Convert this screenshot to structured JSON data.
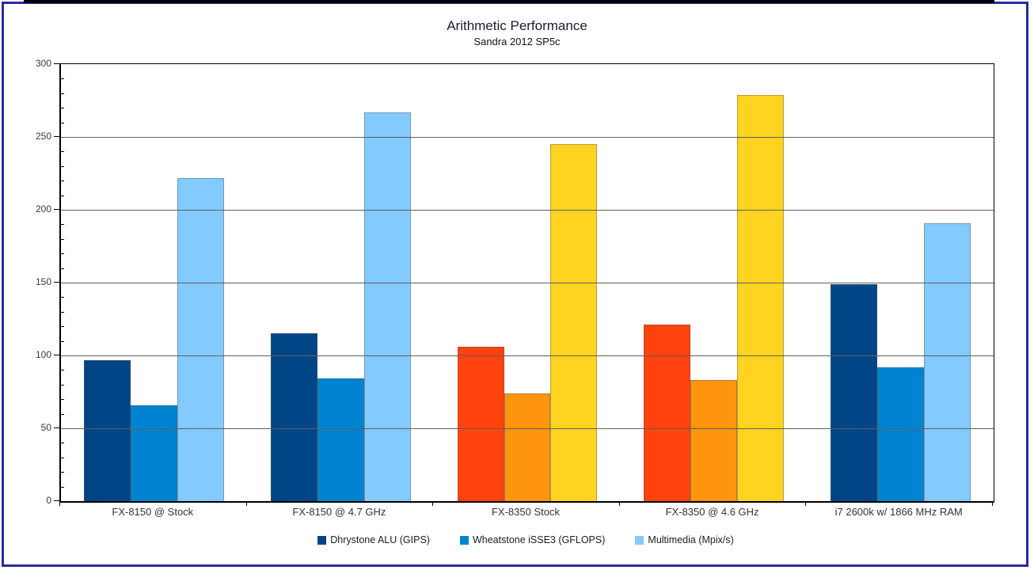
{
  "page": {
    "background": "#ffffff",
    "frame_border_color": "#2a2aa0",
    "top_strip_color": "#000000"
  },
  "chart_data": {
    "type": "bar",
    "title": "Arithmetic Performance",
    "subtitle": "Sandra 2012 SP5c",
    "categories": [
      "FX-8150 @ Stock",
      "FX-8150 @ 4.7 GHz",
      "FX-8350 Stock",
      "FX-8350 @ 4.6 GHz",
      "i7 2600k w/ 1866 MHz RAM"
    ],
    "series": [
      {
        "name": "Dhrystone ALU (GIPS)",
        "values": [
          97,
          115,
          106,
          121,
          149
        ]
      },
      {
        "name": "Wheatstone iSSE3 (GFLOPS)",
        "values": [
          66,
          84,
          74,
          83,
          92
        ]
      },
      {
        "name": "Multimedia (Mpix/s)",
        "values": [
          222,
          267,
          245,
          279,
          191
        ]
      }
    ],
    "palettes": {
      "blue": [
        "#004586",
        "#0084D1",
        "#83CAFF"
      ],
      "warm": [
        "#FF420E",
        "#FF950E",
        "#FFD320"
      ]
    },
    "category_palette": [
      "blue",
      "blue",
      "warm",
      "warm",
      "blue"
    ],
    "legend_palette": "blue",
    "ylim": [
      0,
      300
    ],
    "y_major_step": 50,
    "y_minor_step": 10,
    "y_tick_labels": [
      "0",
      "50",
      "100",
      "150",
      "200",
      "250",
      "300"
    ],
    "grid": true,
    "legend_position": "bottom",
    "axis_color": "#000000",
    "gridline_color": "#5f5f5f",
    "tick_label_color": "#3a3a3a"
  }
}
